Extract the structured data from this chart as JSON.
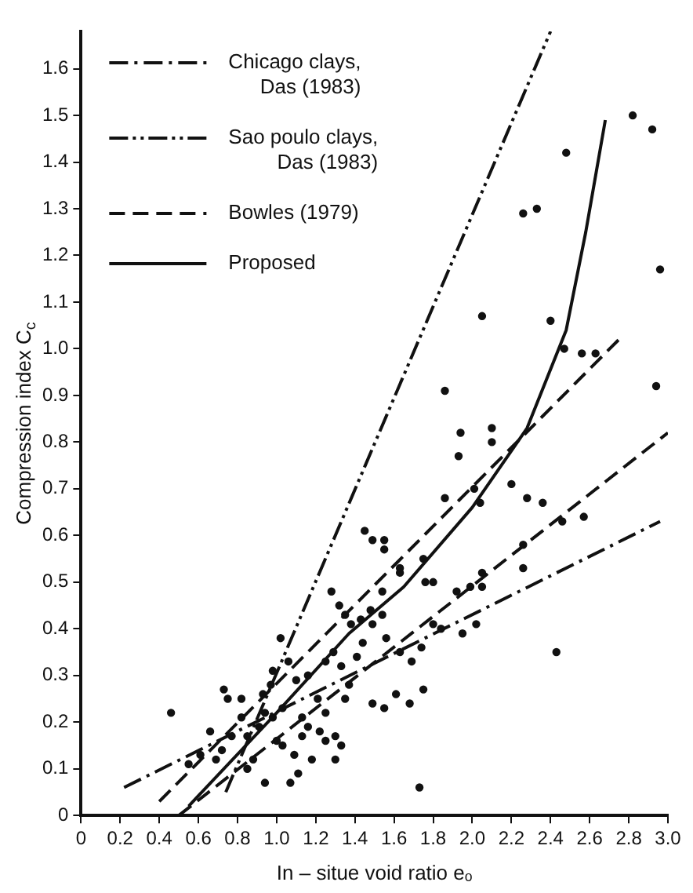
{
  "chart_data": {
    "type": "scatter",
    "xlabel": "In – situe void ratio eₒ",
    "ylabel": "Compression index C$_{c}$",
    "xlim": [
      0,
      3.0
    ],
    "ylim": [
      0,
      1.68
    ],
    "xticks": [
      0,
      0.2,
      0.4,
      0.6,
      0.8,
      {
        "value": 1.0,
        "label": "1.0"
      },
      1.2,
      1.4,
      1.6,
      1.8,
      {
        "value": 2.0,
        "label": "2.0"
      },
      2.2,
      2.4,
      2.6,
      2.8,
      {
        "value": 3.0,
        "label": "3.0"
      }
    ],
    "yticks": [
      0,
      0.1,
      0.2,
      0.3,
      0.4,
      0.5,
      0.6,
      0.7,
      0.8,
      0.9,
      {
        "value": 1.0,
        "label": "1.0"
      },
      1.1,
      1.2,
      1.3,
      1.4,
      1.5,
      1.6
    ],
    "grid": false,
    "legend": "top left",
    "series": [
      {
        "type": "line",
        "name": "Chicago clays, Das (1983)",
        "color": "#111111",
        "line_style": "dashdot",
        "marker": "none",
        "x": [
          0.22,
          2.96
        ],
        "values": [
          0.06,
          0.63
        ]
      },
      {
        "type": "line",
        "name": "Sao poulo clays, Das (1983)",
        "color": "#111111",
        "line_style": "dashdotdot",
        "marker": "none",
        "x": [
          0.74,
          2.4
        ],
        "values": [
          0.05,
          1.68
        ]
      },
      {
        "type": "line",
        "name": "Bowles (1979)",
        "color": "#111111",
        "line_style": "dashed",
        "marker": "none",
        "x": [
          0.4,
          2.75
        ],
        "values": [
          0.03,
          1.02
        ]
      },
      {
        "type": "line",
        "color": "#111111",
        "line_style": "dashed",
        "marker": "none",
        "x": [
          0.5,
          3.0
        ],
        "values": [
          0.0,
          0.82
        ]
      },
      {
        "type": "line",
        "name": "Proposed",
        "color": "#111111",
        "line_style": "solid",
        "marker": "none",
        "x": [
          0.55,
          1.0,
          1.37,
          1.65,
          2.0,
          2.28,
          2.48,
          2.58,
          2.68
        ],
        "values": [
          0.02,
          0.22,
          0.39,
          0.49,
          0.66,
          0.83,
          1.04,
          1.25,
          1.49
        ]
      },
      {
        "type": "scatter",
        "color": "#111111",
        "marker": "circle",
        "x": [
          2.82,
          2.92,
          2.48,
          2.26,
          2.33,
          2.96,
          2.05,
          2.4,
          1.86,
          2.94,
          2.47,
          2.56,
          2.63,
          1.94,
          2.1,
          2.1,
          1.93,
          1.86,
          2.2,
          2.28,
          2.36,
          2.46,
          2.57,
          2.01,
          2.04,
          2.26,
          2.26,
          1.45,
          1.49,
          1.55,
          1.55,
          1.63,
          1.63,
          1.75,
          1.76,
          1.8,
          1.92,
          1.99,
          2.05,
          2.05,
          1.28,
          1.32,
          1.35,
          1.43,
          1.48,
          1.54,
          1.54,
          0.46,
          1.73,
          2.43,
          1.49,
          1.55,
          1.61,
          1.68,
          1.75,
          1.63,
          1.69,
          1.74,
          1.84,
          1.95,
          2.02,
          1.8,
          0.73,
          0.75,
          0.82,
          0.66,
          0.72,
          0.77,
          0.85,
          0.88,
          0.94,
          1.07,
          1.11,
          1.09,
          1.18,
          1.0,
          1.03,
          1.13,
          1.22,
          1.25,
          1.3,
          1.33,
          1.3,
          1.25,
          1.02,
          0.98,
          1.06,
          1.1,
          1.16,
          0.94,
          0.98,
          1.03,
          0.93,
          0.97,
          1.13,
          1.16,
          1.21,
          1.25,
          1.29,
          1.33,
          1.37,
          1.35,
          1.41,
          1.44,
          1.49,
          1.38,
          1.56,
          0.91,
          0.85,
          0.82,
          0.61,
          0.55,
          0.69
        ],
        "values": [
          1.5,
          1.47,
          1.42,
          1.29,
          1.3,
          1.17,
          1.07,
          1.06,
          0.91,
          0.92,
          1.0,
          0.99,
          0.99,
          0.82,
          0.83,
          0.8,
          0.77,
          0.68,
          0.71,
          0.68,
          0.67,
          0.63,
          0.64,
          0.7,
          0.67,
          0.58,
          0.53,
          0.61,
          0.59,
          0.59,
          0.57,
          0.53,
          0.52,
          0.55,
          0.5,
          0.5,
          0.48,
          0.49,
          0.49,
          0.52,
          0.48,
          0.45,
          0.43,
          0.42,
          0.44,
          0.43,
          0.48,
          0.22,
          0.06,
          0.35,
          0.24,
          0.23,
          0.26,
          0.24,
          0.27,
          0.35,
          0.33,
          0.36,
          0.4,
          0.39,
          0.41,
          0.41,
          0.27,
          0.25,
          0.25,
          0.18,
          0.14,
          0.17,
          0.1,
          0.12,
          0.07,
          0.07,
          0.09,
          0.13,
          0.12,
          0.16,
          0.15,
          0.17,
          0.18,
          0.16,
          0.17,
          0.15,
          0.12,
          0.22,
          0.38,
          0.31,
          0.33,
          0.29,
          0.3,
          0.22,
          0.21,
          0.23,
          0.26,
          0.28,
          0.21,
          0.19,
          0.25,
          0.33,
          0.35,
          0.32,
          0.28,
          0.25,
          0.34,
          0.37,
          0.41,
          0.41,
          0.38,
          0.19,
          0.17,
          0.21,
          0.13,
          0.11,
          0.12
        ]
      }
    ]
  }
}
